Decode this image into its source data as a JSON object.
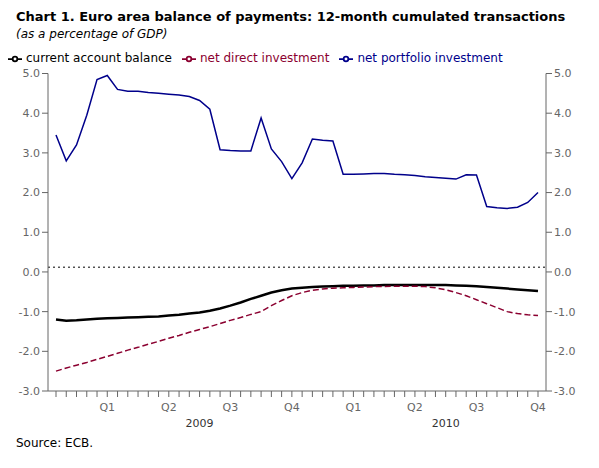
{
  "chart_data": {
    "type": "line",
    "title": "Chart 1. Euro area balance of payments: 12-month cumulated transactions",
    "subtitle": "(as a percentage of GDP)",
    "source": "Source: ECB.",
    "categories": [
      null,
      null,
      null,
      null,
      null,
      "Q1",
      null,
      null,
      null,
      null,
      null,
      "Q2",
      null,
      null,
      null,
      null,
      null,
      "Q3",
      null,
      null,
      null,
      null,
      null,
      "Q4",
      null,
      null,
      null,
      null,
      null,
      "Q1",
      null,
      null,
      null,
      null,
      null,
      "Q2",
      null,
      null,
      null,
      null,
      null,
      "Q3",
      null,
      null,
      null,
      null,
      null,
      "Q4"
    ],
    "annotations": [
      {
        "text": "2009",
        "x": 14
      },
      {
        "text": "2010",
        "x": 38
      }
    ],
    "series": [
      {
        "name": "current account balance",
        "color": "#000000",
        "line_style": "solid",
        "values": [
          -1.2,
          -1.23,
          -1.22,
          -1.2,
          -1.18,
          -1.17,
          -1.16,
          -1.15,
          -1.14,
          -1.13,
          -1.12,
          -1.1,
          -1.08,
          -1.05,
          -1.02,
          -0.98,
          -0.92,
          -0.85,
          -0.77,
          -0.68,
          -0.6,
          -0.52,
          -0.46,
          -0.42,
          -0.4,
          -0.38,
          -0.37,
          -0.36,
          -0.35,
          -0.35,
          -0.34,
          -0.34,
          -0.33,
          -0.33,
          -0.33,
          -0.33,
          -0.33,
          -0.33,
          -0.33,
          -0.34,
          -0.35,
          -0.36,
          -0.38,
          -0.4,
          -0.42,
          -0.44,
          -0.46,
          -0.48
        ]
      },
      {
        "name": "net direct investment",
        "color": "#8B0030",
        "line_style": "dashed",
        "values": [
          -2.5,
          -2.42,
          -2.35,
          -2.28,
          -2.2,
          -2.13,
          -2.05,
          -1.97,
          -1.9,
          -1.82,
          -1.75,
          -1.67,
          -1.6,
          -1.52,
          -1.45,
          -1.38,
          -1.3,
          -1.22,
          -1.15,
          -1.07,
          -1.0,
          -0.85,
          -0.72,
          -0.6,
          -0.52,
          -0.46,
          -0.43,
          -0.41,
          -0.4,
          -0.39,
          -0.38,
          -0.37,
          -0.37,
          -0.36,
          -0.36,
          -0.36,
          -0.37,
          -0.4,
          -0.45,
          -0.52,
          -0.6,
          -0.7,
          -0.8,
          -0.9,
          -1.0,
          -1.05,
          -1.08,
          -1.1
        ]
      },
      {
        "name": "net portfolio investment",
        "color": "#00008B",
        "line_style": "solid",
        "values": [
          3.45,
          2.8,
          3.2,
          3.95,
          4.85,
          4.95,
          4.6,
          4.55,
          4.55,
          4.52,
          4.5,
          4.48,
          4.46,
          4.42,
          4.32,
          4.1,
          3.08,
          3.06,
          3.05,
          3.05,
          3.88,
          3.1,
          2.78,
          2.35,
          2.75,
          3.35,
          3.32,
          3.3,
          2.46,
          2.46,
          2.47,
          2.48,
          2.48,
          2.46,
          2.45,
          2.43,
          2.4,
          2.38,
          2.36,
          2.34,
          2.45,
          2.44,
          1.65,
          1.62,
          1.6,
          1.63,
          1.75,
          2.0
        ]
      }
    ],
    "reference_lines": [
      {
        "y": 0.12,
        "line_style": "dotted"
      }
    ],
    "ylim": [
      -3.0,
      5.0
    ],
    "yticks": [
      {
        "value": -3,
        "label": "-3.0"
      },
      {
        "value": -2,
        "label": "-2.0"
      },
      {
        "value": -1,
        "label": "-1.0"
      },
      {
        "value": 0,
        "label": "0.0"
      },
      {
        "value": 1,
        "label": "1.0"
      },
      {
        "value": 2,
        "label": "2.0"
      },
      {
        "value": 3,
        "label": "3.0"
      },
      {
        "value": 4,
        "label": "4.0"
      },
      {
        "value": 5,
        "label": "5.0"
      }
    ],
    "y2lim": [
      -3.0,
      5.0
    ],
    "y2ticks": [
      {
        "value": -3,
        "label": "-3.0"
      },
      {
        "value": -2,
        "label": "-2.0"
      },
      {
        "value": -1,
        "label": "-1.0"
      },
      {
        "value": 0,
        "label": "0.0"
      },
      {
        "value": 1,
        "label": "1.0"
      },
      {
        "value": 2,
        "label": "2.0"
      },
      {
        "value": 3,
        "label": "3.0"
      },
      {
        "value": 4,
        "label": "4.0"
      },
      {
        "value": 5,
        "label": "5.0"
      }
    ],
    "grid": false,
    "legend": "top left"
  }
}
